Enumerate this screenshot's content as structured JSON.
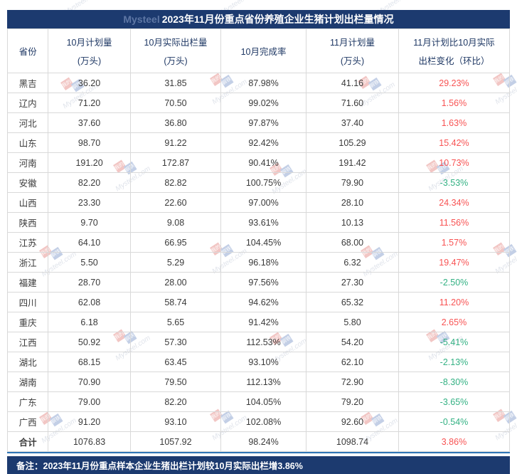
{
  "title": "2023年11月份重点省份养殖企业生猪计划出栏量情况",
  "brand": "Mysteel",
  "watermark": {
    "text": "Mysteel.com",
    "logo_top": "我的",
    "logo_bottom": "钢铁"
  },
  "colors": {
    "navy": "#1c3a6f",
    "red": "#f85353",
    "green": "#33b183",
    "divider_blue": "#2e75b6",
    "border_gray": "#d9d9d9",
    "header_text": "#1f3864"
  },
  "table": {
    "columns": [
      {
        "line1": "省份",
        "line2": ""
      },
      {
        "line1": "10月计划量",
        "line2": "(万头)"
      },
      {
        "line1": "10月实际出栏量",
        "line2": "(万头)"
      },
      {
        "line1": "10月完成率",
        "line2": ""
      },
      {
        "line1": "11月计划量",
        "line2": "(万头)"
      },
      {
        "line1": "11月计划比10月实际",
        "line2": "出栏变化（环比）"
      }
    ],
    "rows": [
      {
        "province": "黑吉",
        "oct_plan": "36.20",
        "oct_actual": "31.85",
        "completion": "87.98%",
        "nov_plan": "41.16",
        "change": "29.23%",
        "is_total": false
      },
      {
        "province": "辽内",
        "oct_plan": "71.20",
        "oct_actual": "70.50",
        "completion": "99.02%",
        "nov_plan": "71.60",
        "change": "1.56%",
        "is_total": false
      },
      {
        "province": "河北",
        "oct_plan": "37.60",
        "oct_actual": "36.80",
        "completion": "97.87%",
        "nov_plan": "37.40",
        "change": "1.63%",
        "is_total": false
      },
      {
        "province": "山东",
        "oct_plan": "98.70",
        "oct_actual": "91.22",
        "completion": "92.42%",
        "nov_plan": "105.29",
        "change": "15.42%",
        "is_total": false
      },
      {
        "province": "河南",
        "oct_plan": "191.20",
        "oct_actual": "172.87",
        "completion": "90.41%",
        "nov_plan": "191.42",
        "change": "10.73%",
        "is_total": false
      },
      {
        "province": "安徽",
        "oct_plan": "82.20",
        "oct_actual": "82.82",
        "completion": "100.75%",
        "nov_plan": "79.90",
        "change": "-3.53%",
        "is_total": false
      },
      {
        "province": "山西",
        "oct_plan": "23.30",
        "oct_actual": "22.60",
        "completion": "97.00%",
        "nov_plan": "28.10",
        "change": "24.34%",
        "is_total": false
      },
      {
        "province": "陕西",
        "oct_plan": "9.70",
        "oct_actual": "9.08",
        "completion": "93.61%",
        "nov_plan": "10.13",
        "change": "11.56%",
        "is_total": false
      },
      {
        "province": "江苏",
        "oct_plan": "64.10",
        "oct_actual": "66.95",
        "completion": "104.45%",
        "nov_plan": "68.00",
        "change": "1.57%",
        "is_total": false
      },
      {
        "province": "浙江",
        "oct_plan": "5.50",
        "oct_actual": "5.29",
        "completion": "96.18%",
        "nov_plan": "6.32",
        "change": "19.47%",
        "is_total": false
      },
      {
        "province": "福建",
        "oct_plan": "28.70",
        "oct_actual": "28.00",
        "completion": "97.56%",
        "nov_plan": "27.30",
        "change": "-2.50%",
        "is_total": false
      },
      {
        "province": "四川",
        "oct_plan": "62.08",
        "oct_actual": "58.74",
        "completion": "94.62%",
        "nov_plan": "65.32",
        "change": "11.20%",
        "is_total": false
      },
      {
        "province": "重庆",
        "oct_plan": "6.18",
        "oct_actual": "5.65",
        "completion": "91.42%",
        "nov_plan": "5.80",
        "change": "2.65%",
        "is_total": false
      },
      {
        "province": "江西",
        "oct_plan": "50.92",
        "oct_actual": "57.30",
        "completion": "112.53%",
        "nov_plan": "54.20",
        "change": "-5.41%",
        "is_total": false
      },
      {
        "province": "湖北",
        "oct_plan": "68.15",
        "oct_actual": "63.45",
        "completion": "93.10%",
        "nov_plan": "62.10",
        "change": "-2.13%",
        "is_total": false
      },
      {
        "province": "湖南",
        "oct_plan": "70.90",
        "oct_actual": "79.50",
        "completion": "112.13%",
        "nov_plan": "72.90",
        "change": "-8.30%",
        "is_total": false
      },
      {
        "province": "广东",
        "oct_plan": "79.00",
        "oct_actual": "82.20",
        "completion": "104.05%",
        "nov_plan": "79.20",
        "change": "-3.65%",
        "is_total": false
      },
      {
        "province": "广西",
        "oct_plan": "91.20",
        "oct_actual": "93.10",
        "completion": "102.08%",
        "nov_plan": "92.60",
        "change": "-0.54%",
        "is_total": false
      },
      {
        "province": "合计",
        "oct_plan": "1076.83",
        "oct_actual": "1057.92",
        "completion": "98.24%",
        "nov_plan": "1098.74",
        "change": "3.86%",
        "is_total": true
      }
    ]
  },
  "footnote": "备注：2023年11月份重点样本企业生猪出栏计划较10月实际出栏增3.86%"
}
